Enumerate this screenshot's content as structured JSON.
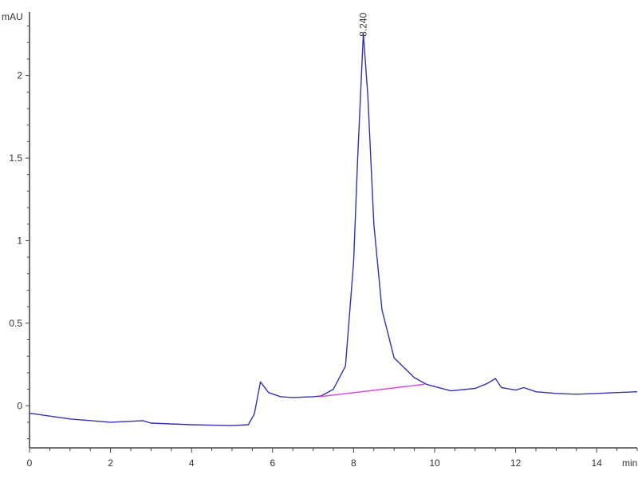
{
  "chart_data": {
    "type": "line",
    "title": "",
    "xlabel": "min",
    "ylabel": "mAU",
    "xlim": [
      0,
      15
    ],
    "ylim": [
      -0.255,
      2.385
    ],
    "x_ticks": [
      0,
      2,
      4,
      6,
      8,
      10,
      12,
      14
    ],
    "x_tick_labels": [
      "0",
      "2",
      "4",
      "6",
      "8",
      "10",
      "12",
      "14"
    ],
    "y_ticks": [
      0,
      0.5,
      1,
      1.5,
      2
    ],
    "y_tick_labels": [
      "0",
      "0.5",
      "1",
      "1.5",
      "2"
    ],
    "grid": false,
    "colors": {
      "trace": "#3333b0",
      "baseline": "#e040e0",
      "axis": "#444444"
    },
    "series": [
      {
        "x": [
          0,
          1,
          2,
          2.8,
          3,
          4,
          5,
          5.4,
          5.55,
          5.7,
          5.9,
          6.2,
          6.5,
          7,
          7.2,
          7.5,
          7.8,
          8.0,
          8.1,
          8.24,
          8.35,
          8.5,
          8.7,
          9.0,
          9.5,
          9.8,
          10.4,
          11,
          11.3,
          11.5,
          11.65,
          12,
          12.2,
          12.5,
          13,
          13.5,
          14,
          15
        ],
        "y": [
          -0.045,
          -0.08,
          -0.1,
          -0.09,
          -0.105,
          -0.115,
          -0.12,
          -0.115,
          -0.05,
          0.145,
          0.08,
          0.055,
          0.05,
          0.055,
          0.06,
          0.1,
          0.24,
          0.87,
          1.5,
          2.255,
          1.88,
          1.1,
          0.58,
          0.29,
          0.17,
          0.13,
          0.09,
          0.105,
          0.135,
          0.165,
          0.11,
          0.095,
          0.11,
          0.085,
          0.075,
          0.07,
          0.075,
          0.085
        ]
      }
    ],
    "integration_baseline": {
      "x": [
        7.15,
        9.75
      ],
      "y": [
        0.055,
        0.13
      ]
    },
    "annotations": [
      {
        "text": "8.240",
        "x": 8.24,
        "y": 2.255
      }
    ]
  }
}
